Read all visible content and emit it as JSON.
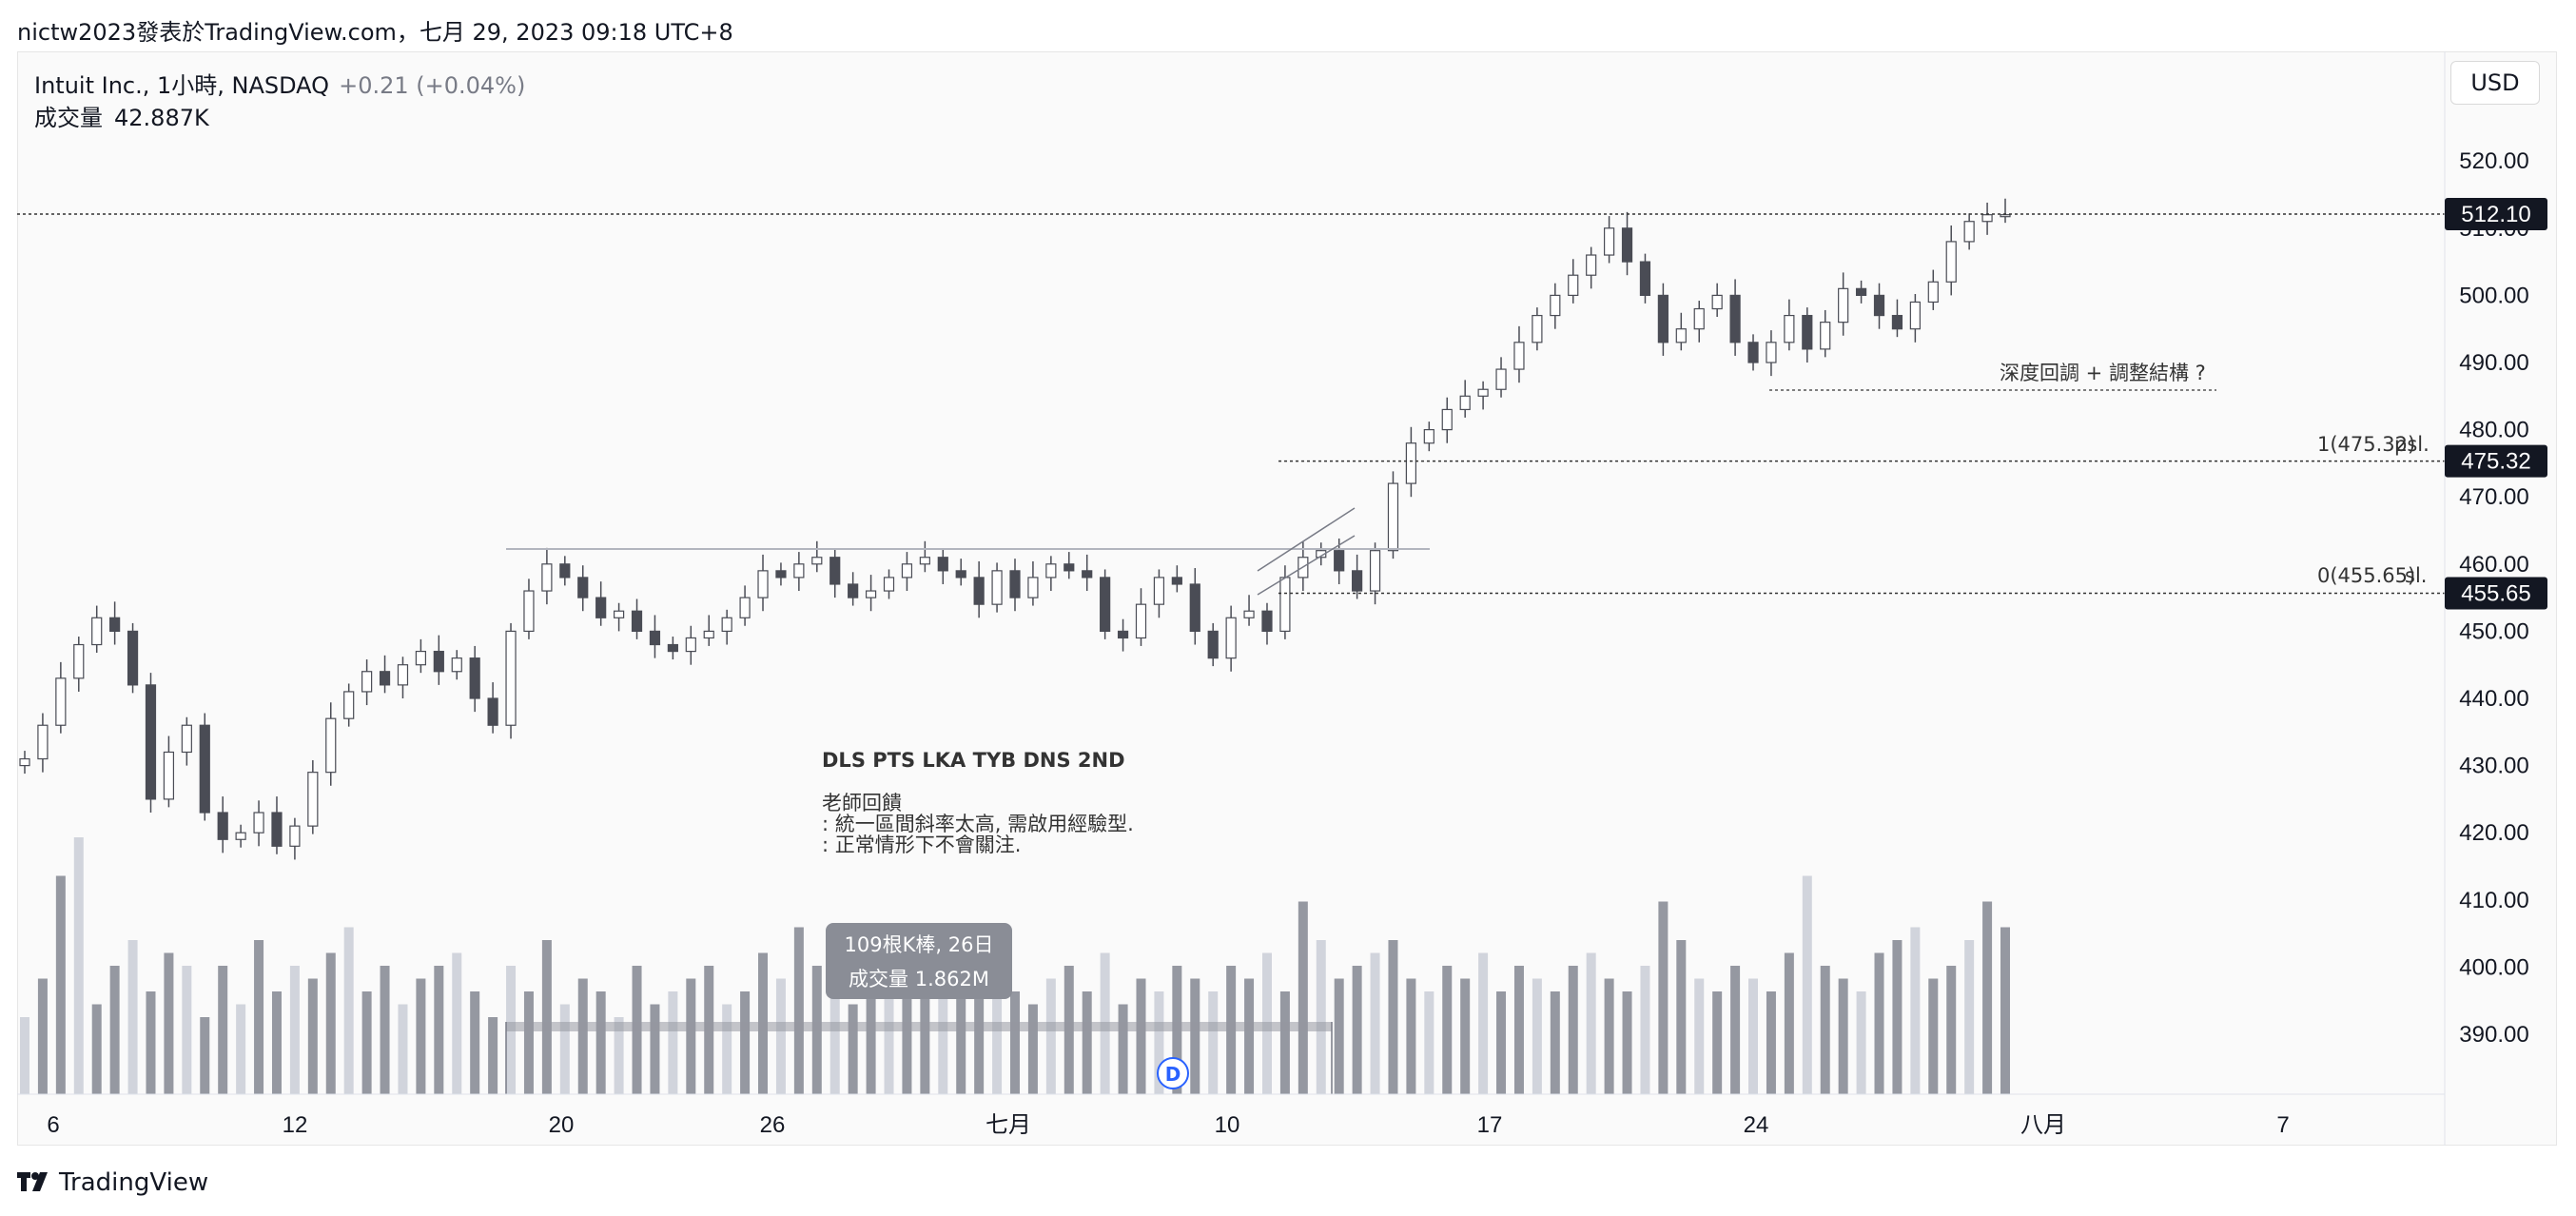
{
  "attribution": "nictw2023發表於TradingView.com，七月 29, 2023 09:18 UTC+8",
  "header": {
    "symbol_line": "Intuit Inc., 1小時, NASDAQ",
    "change": "+0.21 (+0.04%)",
    "volume_label": "成交量",
    "volume_value": "42.887K"
  },
  "currency_button": "USD",
  "footer_logo": "TradingView",
  "annotations": {
    "strategy_title": "DLS PTS LKA TYB DNS 2ND",
    "teacher_feedback": [
      "老師回饋",
      ": 統一區間斜率太高, 需啟用經驗型.",
      ": 正常情形下不會關注."
    ],
    "deep_pullback": "深度回調 + 調整結構 ?",
    "tooltip_line1": "109根K棒, 26日",
    "tooltip_line2": "成交量 1.862M",
    "fib_1_label": "1(475.32)",
    "fib_0_label": "0(455.65)",
    "psl_label": "psl.",
    "sl_label": "sl.",
    "dividend_marker": "D"
  },
  "price_tags": [
    {
      "value": "512.10",
      "price": 512.1
    },
    {
      "value": "475.32",
      "price": 475.32
    },
    {
      "value": "455.65",
      "price": 455.65
    }
  ],
  "chart_data": {
    "type": "candlestick",
    "ylim": [
      380,
      525
    ],
    "y_ticks": [
      "390.00",
      "400.00",
      "410.00",
      "420.00",
      "430.00",
      "440.00",
      "450.00",
      "460.00",
      "470.00",
      "480.00",
      "490.00",
      "500.00",
      "510.00",
      "520.00"
    ],
    "x_ticks": [
      "6",
      "12",
      "20",
      "26",
      "七月",
      "10",
      "17",
      "24",
      "八月",
      "7"
    ],
    "close_path": [
      431,
      436,
      443,
      448,
      452,
      450,
      442,
      425,
      432,
      436,
      423,
      419,
      420,
      423,
      418,
      421,
      429,
      437,
      441,
      444,
      442,
      445,
      447,
      444,
      446,
      440,
      436,
      450,
      456,
      460,
      458,
      455,
      452,
      453,
      450,
      448,
      447,
      449,
      450,
      452,
      455,
      459,
      458,
      460,
      461,
      457,
      455,
      456,
      458,
      460,
      461,
      459,
      458,
      454,
      459,
      455,
      458,
      460,
      459,
      458,
      450,
      449,
      454,
      458,
      457,
      450,
      446,
      452,
      453,
      450,
      458,
      461,
      462,
      459,
      456,
      462,
      472,
      478,
      480,
      483,
      485,
      486,
      489,
      493,
      497,
      500,
      503,
      506,
      510,
      505,
      500,
      493,
      495,
      498,
      500,
      493,
      490,
      493,
      497,
      492,
      496,
      501,
      500,
      497,
      495,
      499,
      502,
      508,
      511,
      512,
      512
    ],
    "volume_relative": [
      0.3,
      0.45,
      0.85,
      1.0,
      0.35,
      0.5,
      0.6,
      0.4,
      0.55,
      0.5,
      0.3,
      0.5,
      0.35,
      0.6,
      0.4,
      0.5,
      0.45,
      0.55,
      0.65,
      0.4,
      0.5,
      0.35,
      0.45,
      0.5,
      0.55,
      0.4,
      0.3,
      0.5,
      0.4,
      0.6,
      0.35,
      0.45,
      0.4,
      0.3,
      0.5,
      0.35,
      0.4,
      0.45,
      0.5,
      0.35,
      0.4,
      0.55,
      0.45,
      0.65,
      0.5,
      0.4,
      0.35,
      0.4,
      0.45,
      0.5,
      0.55,
      0.45,
      0.4,
      0.5,
      0.45,
      0.4,
      0.35,
      0.45,
      0.5,
      0.4,
      0.55,
      0.35,
      0.45,
      0.4,
      0.5,
      0.45,
      0.4,
      0.5,
      0.45,
      0.55,
      0.4,
      0.75,
      0.6,
      0.45,
      0.5,
      0.55,
      0.6,
      0.45,
      0.4,
      0.5,
      0.45,
      0.55,
      0.4,
      0.5,
      0.45,
      0.4,
      0.5,
      0.55,
      0.45,
      0.4,
      0.5,
      0.75,
      0.6,
      0.45,
      0.4,
      0.5,
      0.45,
      0.4,
      0.55,
      0.85,
      0.5,
      0.45,
      0.4,
      0.55,
      0.6,
      0.65,
      0.45,
      0.5,
      0.6,
      0.75,
      0.65
    ]
  }
}
